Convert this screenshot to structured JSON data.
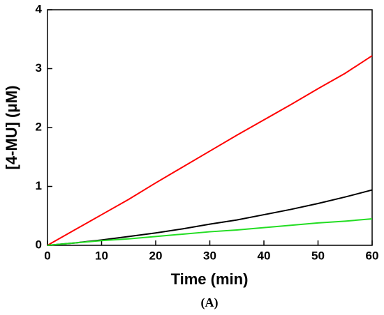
{
  "chart_data": {
    "type": "line",
    "x_label": "Time (min)",
    "y_label": "[4-MU] (μM)",
    "caption": "(A)",
    "x": [
      0,
      5,
      10,
      15,
      20,
      25,
      30,
      35,
      40,
      45,
      50,
      55,
      60
    ],
    "series": [
      {
        "color": "#ff0000",
        "values": [
          0,
          0.26,
          0.52,
          0.78,
          1.06,
          1.33,
          1.6,
          1.87,
          2.13,
          2.39,
          2.66,
          2.92,
          3.22
        ]
      },
      {
        "color": "#000000",
        "values": [
          0,
          0.04,
          0.09,
          0.15,
          0.21,
          0.28,
          0.36,
          0.43,
          0.52,
          0.61,
          0.71,
          0.82,
          0.94
        ]
      },
      {
        "color": "#22dd22",
        "values": [
          0,
          0.04,
          0.08,
          0.11,
          0.15,
          0.19,
          0.23,
          0.26,
          0.3,
          0.34,
          0.38,
          0.41,
          0.45
        ]
      }
    ],
    "xlim": [
      0,
      60
    ],
    "xticks": [
      0,
      10,
      20,
      30,
      40,
      50,
      60
    ],
    "ylim": [
      0,
      4
    ],
    "yticks": [
      0,
      1,
      2,
      3,
      4
    ]
  }
}
